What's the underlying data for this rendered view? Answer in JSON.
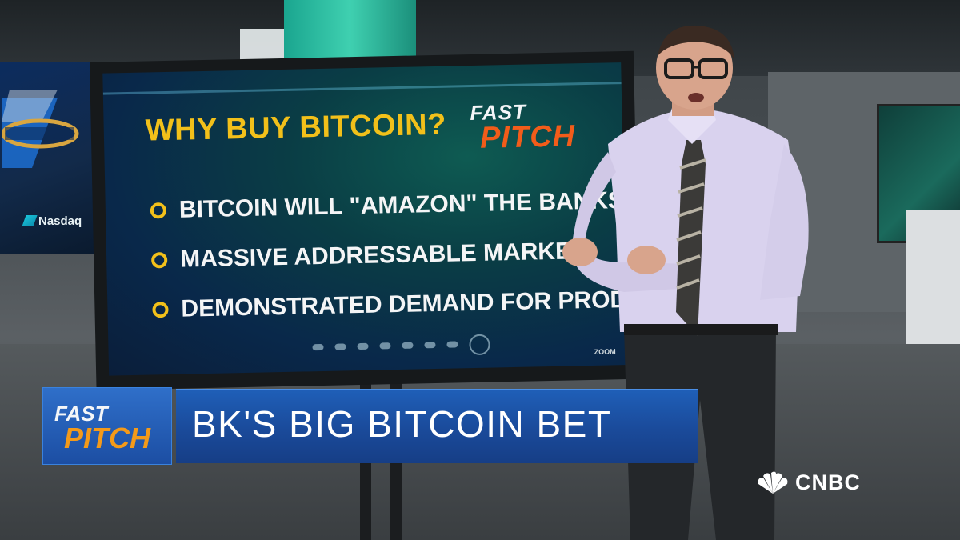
{
  "board": {
    "title": "WHY BUY BITCOIN?",
    "logo_fast": "FAST",
    "logo_pitch": "PITCH",
    "bullets": [
      "BITCOIN WILL \"AMAZON\" THE BANKS",
      "MASSIVE ADDRESSABLE MARKET",
      "DEMONSTRATED DEMAND FOR PRODUCT"
    ],
    "zoom_label": "ZOOM"
  },
  "background": {
    "nasdaq_label": "Nasdaq"
  },
  "lower_third": {
    "badge_fast": "FAST",
    "badge_pitch": "PITCH",
    "headline": "BK'S BIG BITCOIN BET"
  },
  "network": {
    "logo_text": "CNBC"
  },
  "colors": {
    "title_yellow": "#f2c01a",
    "pitch_orange": "#f25c1a",
    "lower_third_blue": "#1f5fb8"
  }
}
